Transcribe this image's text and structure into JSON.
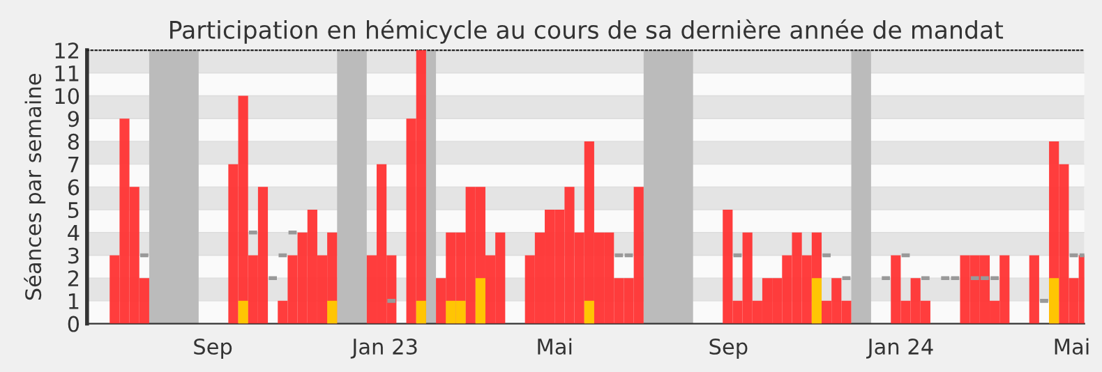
{
  "chart_data": {
    "type": "bar",
    "title": "Participation en hémicycle au cours de sa dernière année de mandat",
    "ylabel": "Séances par semaine",
    "series": [
      {
        "type": "step",
        "color": "#999999",
        "x": [
          "2022-07-11",
          "2022-09-26",
          "2022-10-10",
          "2022-10-17",
          "2022-10-24",
          "2023-01-02",
          "2023-06-12",
          "2023-06-19",
          "2023-09-04",
          "2023-11-06",
          "2023-11-20",
          "2023-12-18",
          "2024-01-01",
          "2024-01-15",
          "2024-01-29",
          "2024-02-05",
          "2024-02-19",
          "2024-02-26",
          "2024-03-04",
          "2024-04-08",
          "2024-04-29",
          "2024-05-06"
        ],
        "values": [
          3,
          4,
          2,
          3,
          4,
          1,
          3,
          3,
          3,
          3,
          2,
          2,
          3,
          2,
          2,
          2,
          2,
          2,
          2,
          1,
          3,
          3
        ]
      },
      {
        "color": "#ff3333",
        "x": [
          "2022-06-20",
          "2022-06-27",
          "2022-07-04",
          "2022-07-11",
          "2022-09-12",
          "2022-09-19",
          "2022-09-26",
          "2022-10-03",
          "2022-10-17",
          "2022-10-24",
          "2022-10-31",
          "2022-11-07",
          "2022-11-14",
          "2022-11-21",
          "2022-12-19",
          "2022-12-26",
          "2023-01-02",
          "2023-01-16",
          "2023-01-23",
          "2023-02-06",
          "2023-02-13",
          "2023-02-20",
          "2023-02-27",
          "2023-03-06",
          "2023-03-13",
          "2023-03-20",
          "2023-04-10",
          "2023-04-17",
          "2023-04-24",
          "2023-05-01",
          "2023-05-08",
          "2023-05-15",
          "2023-05-22",
          "2023-05-29",
          "2023-06-05",
          "2023-06-12",
          "2023-06-19",
          "2023-06-26",
          "2023-08-28",
          "2023-09-04",
          "2023-09-11",
          "2023-09-18",
          "2023-09-25",
          "2023-10-02",
          "2023-10-09",
          "2023-10-16",
          "2023-10-23",
          "2023-10-30",
          "2023-11-06",
          "2023-11-13",
          "2023-11-20",
          "2023-12-25",
          "2024-01-01",
          "2024-01-08",
          "2024-01-15",
          "2024-02-12",
          "2024-02-19",
          "2024-02-26",
          "2024-03-04",
          "2024-03-11",
          "2024-04-01",
          "2024-04-15",
          "2024-04-22",
          "2024-04-29",
          "2024-05-06"
        ],
        "values": [
          3,
          9,
          6,
          2,
          7,
          10,
          3,
          6,
          1,
          3,
          4,
          5,
          3,
          4,
          3,
          7,
          3,
          9,
          12,
          2,
          4,
          4,
          6,
          6,
          3,
          4,
          3,
          4,
          5,
          5,
          6,
          4,
          8,
          4,
          4,
          2,
          2,
          6,
          5,
          1,
          4,
          1,
          2,
          2,
          3,
          4,
          3,
          4,
          1,
          2,
          1,
          3,
          1,
          2,
          1,
          3,
          3,
          3,
          1,
          3,
          3,
          8,
          7,
          2,
          3
        ]
      },
      {
        "color": "#ffcc00",
        "x": [
          "2022-09-19",
          "2022-11-21",
          "2023-01-23",
          "2023-02-13",
          "2023-02-20",
          "2023-03-06",
          "2023-05-22",
          "2023-10-30",
          "2024-04-15"
        ],
        "values": [
          1,
          1,
          1,
          1,
          1,
          2,
          1,
          2,
          2
        ]
      }
    ],
    "bands": [
      {
        "axis": "x",
        "from": "2022-07-18",
        "to": "2022-08-22",
        "color": "#bbbbbb"
      },
      {
        "axis": "x",
        "from": "2022-11-28",
        "to": "2022-12-19",
        "color": "#bbbbbb"
      },
      {
        "axis": "x",
        "from": "2023-01-30",
        "to": "2023-02-06",
        "color": "#bbbbbb"
      },
      {
        "axis": "x",
        "from": "2023-07-03",
        "to": "2023-08-07",
        "color": "#bbbbbb"
      },
      {
        "axis": "x",
        "from": "2023-11-27",
        "to": "2023-12-11",
        "color": "#bbbbbb"
      }
    ],
    "xlim": [
      "2022-06-04",
      "2024-05-10"
    ],
    "xticks": [
      {
        "value": "2022-09-01",
        "label": "Sep"
      },
      {
        "value": "2023-01-01",
        "label": "Jan 23"
      },
      {
        "value": "2023-05-01",
        "label": "Mai"
      },
      {
        "value": "2023-09-01",
        "label": "Sep"
      },
      {
        "value": "2024-01-01",
        "label": "Jan 24"
      },
      {
        "value": "2024-05-01",
        "label": "Mai"
      }
    ],
    "ylim": [
      0,
      12
    ],
    "yticks": [
      0,
      1,
      2,
      3,
      4,
      5,
      6,
      7,
      8,
      9,
      10,
      11,
      12
    ],
    "grid": "y",
    "legend": false
  }
}
